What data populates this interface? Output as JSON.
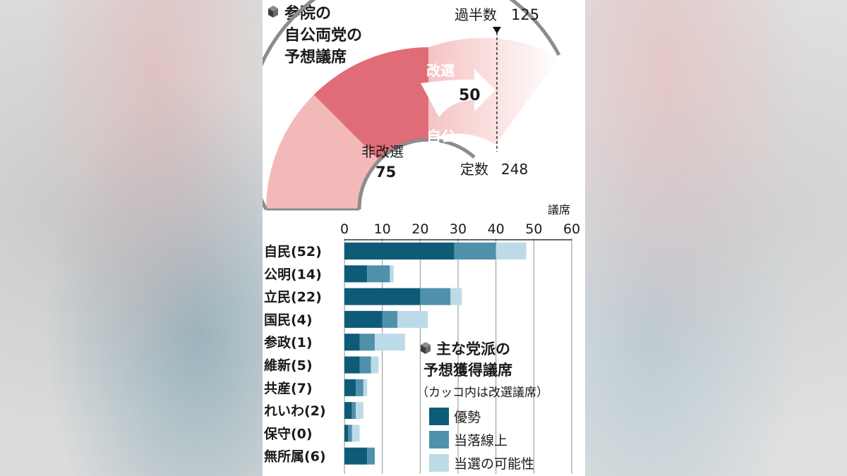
{
  "upper": {
    "title_lines": [
      "参院の",
      "自公両党の",
      "予想議席"
    ],
    "majority_label": "過半数",
    "majority_value": "125",
    "up_label": "改選",
    "up_value": "50",
    "coalition_label": "自公",
    "not_up_label": "非改選",
    "not_up_value": "75",
    "total_label": "定数",
    "total_value": "248"
  },
  "legend": {
    "title_lines": [
      "主な党派の",
      "予想獲得議席"
    ],
    "note": "（カッコ内は改選議席）",
    "items": [
      "優勢",
      "当落線上",
      "当選の可能性"
    ]
  },
  "colors": {
    "dominant": "#0e5b78",
    "borderline": "#4f91ab",
    "possible": "#bcdbe7",
    "arc_outline": "#8c8c8c",
    "arc_not_up": "#f3b9b9",
    "arc_up": "#e06c78"
  },
  "chart_data": {
    "type": "bar",
    "orientation": "horizontal",
    "stacked": true,
    "xlabel": "議席",
    "xlim": [
      0,
      60
    ],
    "xticks": [
      "0",
      "10",
      "20",
      "30",
      "40",
      "50",
      "60"
    ],
    "categories": [
      "自民(52)",
      "公明(14)",
      "立民(22)",
      "国民(4)",
      "参政(1)",
      "維新(5)",
      "共産(7)",
      "れいわ(2)",
      "保守(0)",
      "無所属(6)"
    ],
    "series": [
      {
        "name": "優勢",
        "values": [
          29,
          6,
          20,
          10,
          4,
          4,
          3,
          2,
          1,
          6
        ]
      },
      {
        "name": "当落線上",
        "values": [
          11,
          6,
          8,
          4,
          4,
          3,
          2,
          1,
          1,
          2
        ]
      },
      {
        "name": "当選の可能性",
        "values": [
          8,
          1,
          3,
          8,
          8,
          2,
          1,
          2,
          2,
          0
        ]
      }
    ]
  }
}
